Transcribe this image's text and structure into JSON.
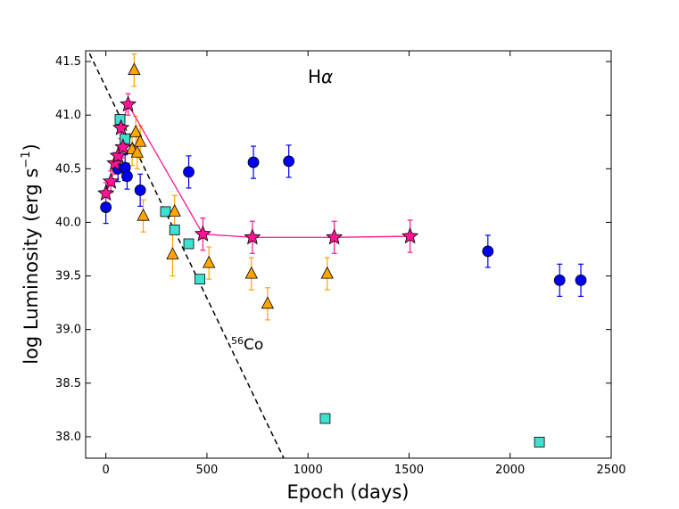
{
  "chart_data": {
    "type": "scatter",
    "title": "",
    "xlabel": "Epoch (days)",
    "ylabel_main": "log Luminosity (erg s",
    "ylabel_sup": "−1",
    "ylabel_close": ")",
    "xlim": [
      -100,
      2500
    ],
    "ylim": [
      37.8,
      41.6
    ],
    "xticks": [
      0,
      500,
      1000,
      1500,
      2000,
      2500
    ],
    "xtick_labels": [
      "0",
      "500",
      "1000",
      "1500",
      "2000",
      "2500"
    ],
    "yticks": [
      38.0,
      38.5,
      39.0,
      39.5,
      40.0,
      40.5,
      41.0,
      41.5
    ],
    "ytick_labels": [
      "38.0",
      "38.5",
      "39.0",
      "39.5",
      "40.0",
      "40.5",
      "41.0",
      "41.5"
    ],
    "grid": false,
    "annotations": {
      "halpha_main": "H",
      "halpha_greek": "α",
      "cobalt_sup": "56",
      "cobalt_label": "Co"
    },
    "colors": {
      "circles": "#0000ee",
      "triangles": "#ffa500",
      "squares": "#40e0d0",
      "stars": "#ff1493",
      "star_line": "#ff1493",
      "errorbar_triangles": "#ffa500",
      "errorbar_circles": "#0000ee",
      "errorbar_stars": "#ff1493",
      "cobalt_line": "#000000"
    },
    "cobalt_decay_line": {
      "x": [
        -100,
        880
      ],
      "y": [
        41.65,
        37.8
      ]
    },
    "series": [
      {
        "name": "circles",
        "marker": "circle",
        "points": [
          {
            "x": 0,
            "y": 40.14,
            "err": 0.15
          },
          {
            "x": 60,
            "y": 40.5,
            "err": 0.12
          },
          {
            "x": 95,
            "y": 40.51,
            "err": 0.12
          },
          {
            "x": 105,
            "y": 40.43,
            "err": 0.12
          },
          {
            "x": 170,
            "y": 40.3,
            "err": 0.15
          },
          {
            "x": 410,
            "y": 40.47,
            "err": 0.15
          },
          {
            "x": 730,
            "y": 40.56,
            "err": 0.15
          },
          {
            "x": 905,
            "y": 40.57,
            "err": 0.15
          },
          {
            "x": 1890,
            "y": 39.73,
            "err": 0.15
          },
          {
            "x": 2245,
            "y": 39.46,
            "err": 0.15
          },
          {
            "x": 2350,
            "y": 39.46,
            "err": 0.15
          }
        ]
      },
      {
        "name": "triangles",
        "marker": "triangle",
        "points": [
          {
            "x": 130,
            "y": 40.68,
            "err": 0.15
          },
          {
            "x": 140,
            "y": 41.42,
            "err": 0.15
          },
          {
            "x": 148,
            "y": 40.84,
            "err": 0.15
          },
          {
            "x": 155,
            "y": 40.65,
            "err": 0.15
          },
          {
            "x": 170,
            "y": 40.75,
            "err": 0.15
          },
          {
            "x": 185,
            "y": 40.06,
            "err": 0.15
          },
          {
            "x": 330,
            "y": 39.7,
            "err": 0.2
          },
          {
            "x": 340,
            "y": 40.1,
            "err": 0.15
          },
          {
            "x": 510,
            "y": 39.62,
            "err": 0.15
          },
          {
            "x": 720,
            "y": 39.52,
            "err": 0.15
          },
          {
            "x": 800,
            "y": 39.24,
            "err": 0.15
          },
          {
            "x": 1095,
            "y": 39.52,
            "err": 0.15
          }
        ]
      },
      {
        "name": "squares",
        "marker": "square",
        "points": [
          {
            "x": 70,
            "y": 40.96
          },
          {
            "x": 95,
            "y": 40.78
          },
          {
            "x": 295,
            "y": 40.1
          },
          {
            "x": 340,
            "y": 39.93
          },
          {
            "x": 410,
            "y": 39.8
          },
          {
            "x": 465,
            "y": 39.47
          },
          {
            "x": 1085,
            "y": 38.17
          },
          {
            "x": 2145,
            "y": 37.95
          }
        ]
      },
      {
        "name": "stars",
        "marker": "star",
        "connect": true,
        "points": [
          {
            "x": 0,
            "y": 40.27,
            "err": 0.1
          },
          {
            "x": 25,
            "y": 40.38,
            "err": 0.1
          },
          {
            "x": 45,
            "y": 40.55,
            "err": 0.1
          },
          {
            "x": 60,
            "y": 40.62,
            "err": 0.1
          },
          {
            "x": 75,
            "y": 40.88,
            "err": 0.1
          },
          {
            "x": 85,
            "y": 40.7,
            "err": 0.1
          },
          {
            "x": 110,
            "y": 41.1,
            "err": 0.1
          },
          {
            "x": 480,
            "y": 39.89,
            "err": 0.15
          },
          {
            "x": 725,
            "y": 39.86,
            "err": 0.15
          },
          {
            "x": 1130,
            "y": 39.86,
            "err": 0.15
          },
          {
            "x": 1505,
            "y": 39.87,
            "err": 0.15
          }
        ],
        "line_points": [
          {
            "x": 0,
            "y": 40.27
          },
          {
            "x": 25,
            "y": 40.38
          },
          {
            "x": 45,
            "y": 40.55
          },
          {
            "x": 60,
            "y": 40.62
          },
          {
            "x": 85,
            "y": 40.7
          },
          {
            "x": 75,
            "y": 40.88
          },
          {
            "x": 110,
            "y": 41.1
          },
          {
            "x": 480,
            "y": 39.89
          },
          {
            "x": 725,
            "y": 39.86
          },
          {
            "x": 1130,
            "y": 39.86
          },
          {
            "x": 1505,
            "y": 39.87
          }
        ]
      }
    ]
  }
}
